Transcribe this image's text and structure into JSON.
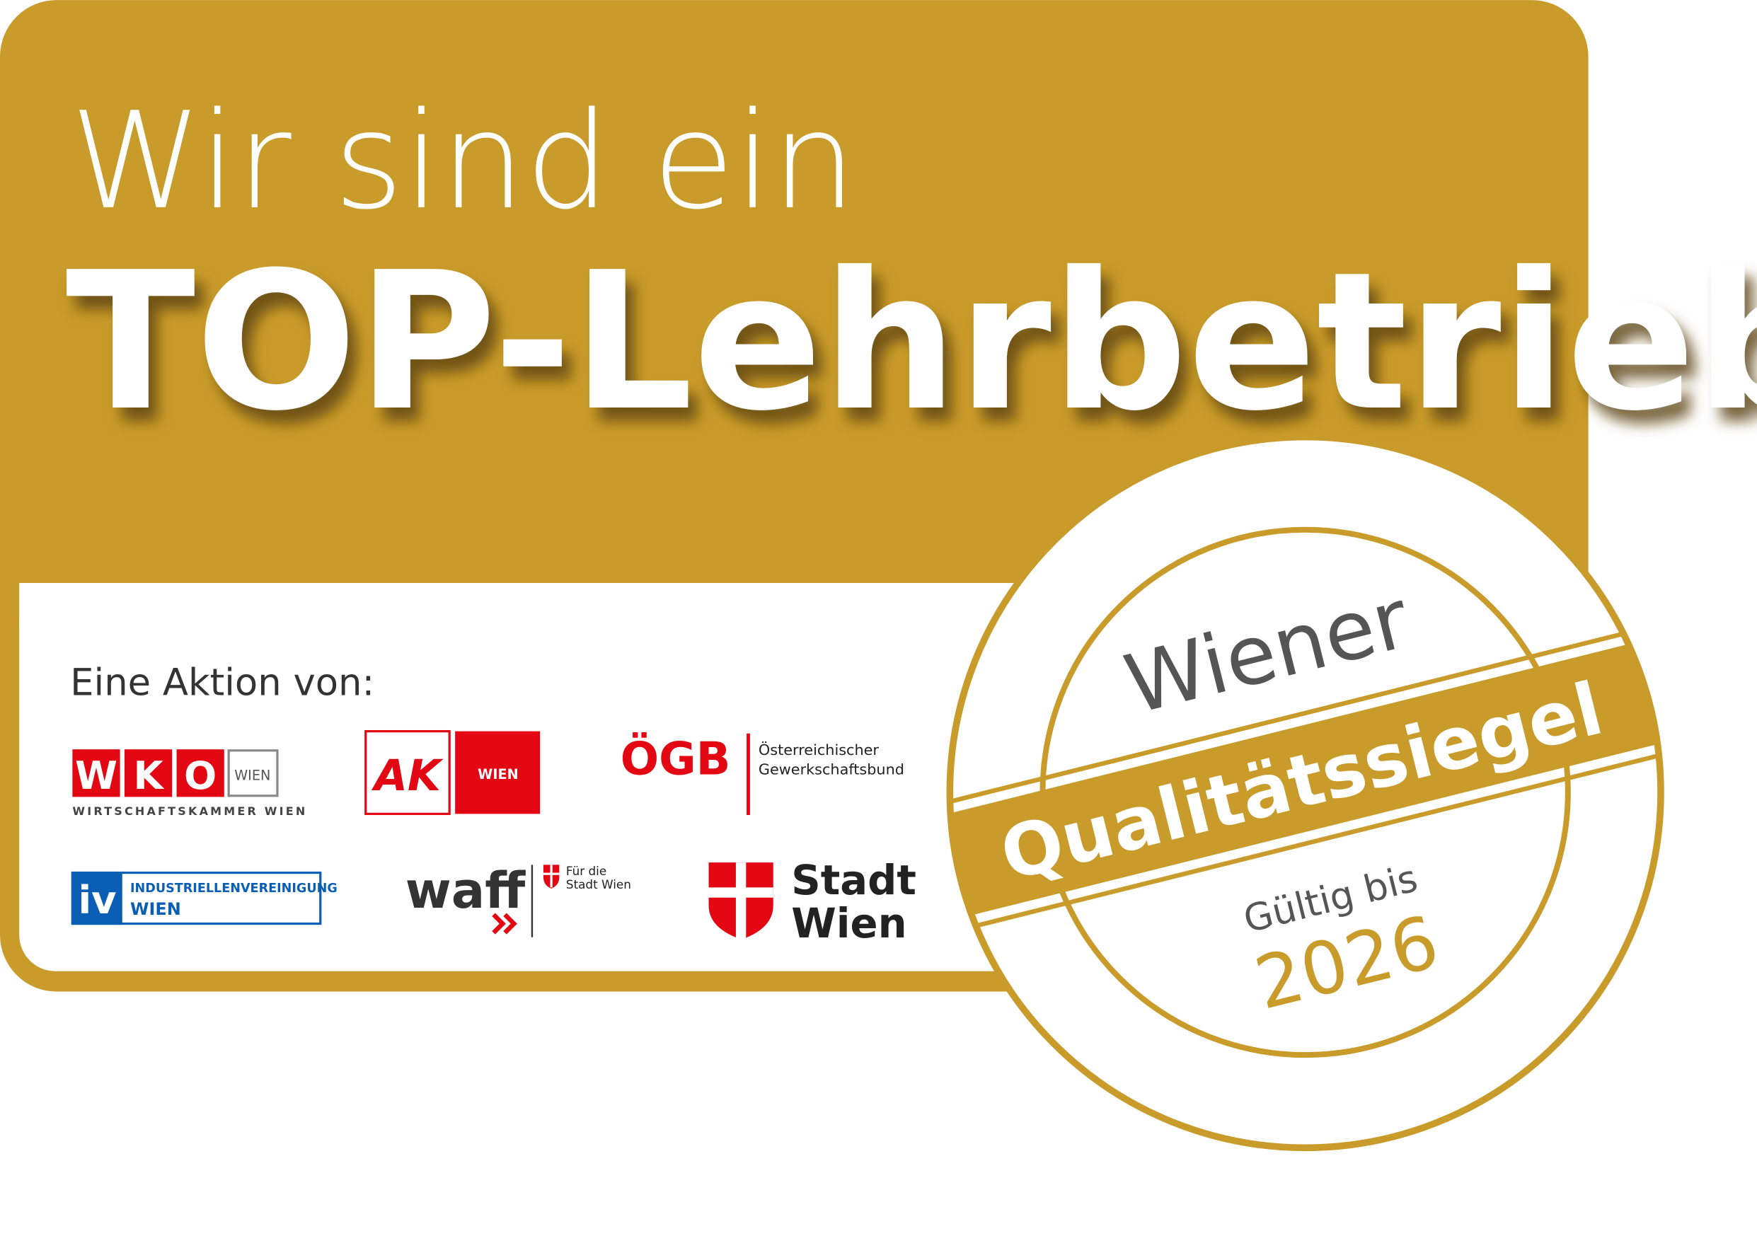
{
  "header": {
    "line1": "Wir sind ein",
    "line2": "TOP-Lehrbetrieb"
  },
  "partners": {
    "intro": "Eine Aktion von:",
    "wko": {
      "letters": [
        "W",
        "K",
        "O"
      ],
      "region": "WIEN",
      "full": "WIRTSCHAFTSKAMMER WIEN"
    },
    "ak": {
      "name": "AK",
      "region": "WIEN"
    },
    "ogb": {
      "name": "ÖGB",
      "line1": "Österreichischer",
      "line2": "Gewerkschaftsbund"
    },
    "iv": {
      "name": "iv",
      "line1": "INDUSTRIELLENVEREINIGUNG",
      "line2": "WIEN"
    },
    "waff": {
      "name": "waff",
      "line1": "Für die",
      "line2": "Stadt Wien"
    },
    "stadt": {
      "line1": "Stadt",
      "line2": "Wien"
    }
  },
  "seal": {
    "top": "Wiener",
    "band": "Qualitätssiegel",
    "valid": "Gültig bis",
    "year": "2026"
  }
}
